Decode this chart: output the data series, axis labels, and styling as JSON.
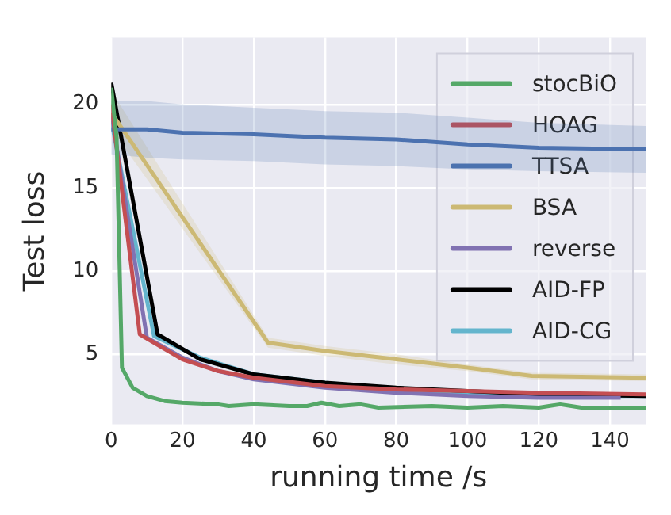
{
  "chart_data": {
    "type": "line",
    "xlabel": "running time /s",
    "ylabel": "Test loss",
    "xlim": [
      0,
      150
    ],
    "xticks": [
      0,
      20,
      40,
      60,
      80,
      100,
      120,
      140
    ],
    "ylim": [
      0.8,
      24
    ],
    "yticks": [
      5,
      10,
      15,
      20
    ],
    "grid": true,
    "legend": "top right",
    "marker": "none",
    "line_style": "solid",
    "series": [
      {
        "name": "stocBiO",
        "color": "#55a868",
        "x": [
          0,
          1.5,
          3,
          6,
          10,
          15,
          20,
          30,
          33,
          40,
          50,
          55,
          59,
          64,
          70,
          75,
          90,
          100,
          110,
          120,
          126,
          132,
          150
        ],
        "values": [
          21,
          18,
          4.2,
          3.0,
          2.5,
          2.2,
          2.1,
          2.0,
          1.9,
          2.0,
          1.9,
          1.9,
          2.1,
          1.9,
          2.0,
          1.8,
          1.9,
          1.8,
          1.9,
          1.8,
          2.0,
          1.8,
          1.8
        ]
      },
      {
        "name": "HOAG",
        "color": "#c44e52",
        "x": [
          0,
          8,
          20,
          30,
          40,
          60,
          80,
          100,
          120,
          150
        ],
        "values": [
          20,
          6.2,
          4.7,
          4.0,
          3.6,
          3.1,
          2.9,
          2.8,
          2.7,
          2.6
        ]
      },
      {
        "name": "TTSA",
        "color": "#4c72b0",
        "x": [
          0,
          10,
          20,
          40,
          60,
          80,
          100,
          120,
          150
        ],
        "values": [
          18.5,
          18.5,
          18.3,
          18.2,
          18.0,
          17.9,
          17.6,
          17.4,
          17.3
        ],
        "lower": [
          17.0,
          16.8,
          16.7,
          16.6,
          16.4,
          16.3,
          16.1,
          16.0,
          15.9
        ],
        "upper": [
          20.2,
          20.2,
          20.0,
          19.8,
          19.6,
          19.5,
          19.2,
          18.9,
          18.7
        ]
      },
      {
        "name": "BSA",
        "color": "#ccb974",
        "x": [
          0,
          44,
          60,
          80,
          100,
          118,
          150
        ],
        "values": [
          19.5,
          5.7,
          5.2,
          4.7,
          4.2,
          3.7,
          3.6
        ],
        "lower": [
          18.5,
          5.4,
          4.9,
          4.4,
          4.0,
          3.5,
          3.4
        ],
        "upper": [
          20.8,
          6.0,
          5.5,
          5.0,
          4.4,
          3.9,
          3.8
        ]
      },
      {
        "name": "reverse",
        "color": "#8172b2",
        "x": [
          0,
          10,
          20,
          30,
          40,
          60,
          80,
          100,
          120,
          143
        ],
        "values": [
          19.5,
          6.0,
          4.8,
          4.0,
          3.5,
          3.0,
          2.7,
          2.5,
          2.4,
          2.4
        ]
      },
      {
        "name": "AID-FP",
        "color": "#000000",
        "x": [
          0,
          13,
          25,
          40,
          60,
          80,
          100,
          120,
          150
        ],
        "values": [
          21.3,
          6.2,
          4.7,
          3.8,
          3.3,
          3.0,
          2.8,
          2.6,
          2.5
        ]
      },
      {
        "name": "AID-CG",
        "color": "#64b5cd",
        "x": [
          0,
          12,
          25,
          40,
          60,
          80,
          100,
          120,
          150
        ],
        "values": [
          19,
          6.1,
          4.8,
          3.8,
          3.3,
          2.9,
          2.7,
          2.5,
          2.5
        ]
      }
    ]
  }
}
